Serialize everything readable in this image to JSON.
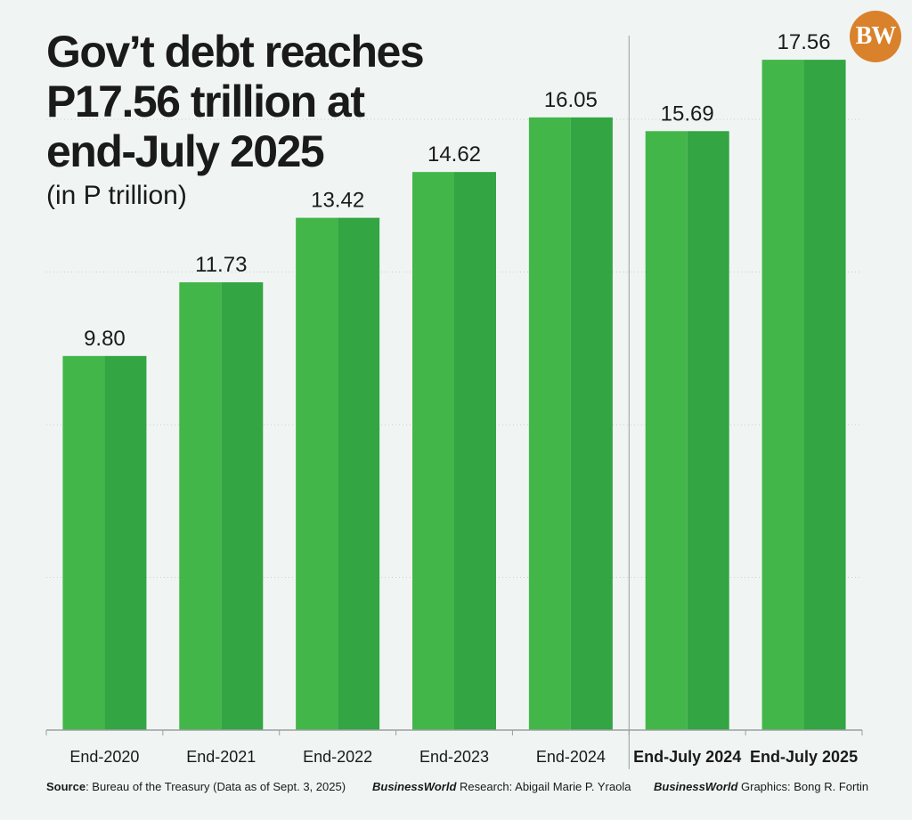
{
  "header": {
    "title_lines": [
      "Gov’t debt reaches",
      "P17.56 trillion at",
      "end-July 2025"
    ],
    "subtitle": "(in P trillion)",
    "logo_text": "BW"
  },
  "colors": {
    "bar_light": "#43b649",
    "bar_dark": "#33a542",
    "grid": "#c9cfcf",
    "axis": "#9aa0a0",
    "background": "#f0f5f4",
    "logo": "#d9822b"
  },
  "chart_data": {
    "type": "bar",
    "title": "Gov’t debt reaches P17.56 trillion at end-July 2025",
    "subtitle": "(in P trillion)",
    "xlabel": "",
    "ylabel": "",
    "categories": [
      "End-2020",
      "End-2021",
      "End-2022",
      "End-2023",
      "End-2024",
      "End-July 2024",
      "End-July 2025"
    ],
    "values": [
      9.8,
      11.73,
      13.42,
      14.62,
      16.05,
      15.69,
      17.56
    ],
    "value_labels": [
      "9.80",
      "11.73",
      "13.42",
      "14.62",
      "16.05",
      "15.69",
      "17.56"
    ],
    "bold_categories": [
      "End-July 2024",
      "End-July 2025"
    ],
    "ylim": [
      0,
      20
    ],
    "grid": true,
    "legend": "none"
  },
  "footer": {
    "source_label": "Source",
    "source_text": ": Bureau of the Treasury (Data as of Sept. 3, 2025)",
    "research_brand": "BusinessWorld",
    "research_text": " Research: Abigail Marie P. Yraola",
    "graphics_brand": "BusinessWorld",
    "graphics_text": " Graphics: Bong R. Fortin"
  }
}
